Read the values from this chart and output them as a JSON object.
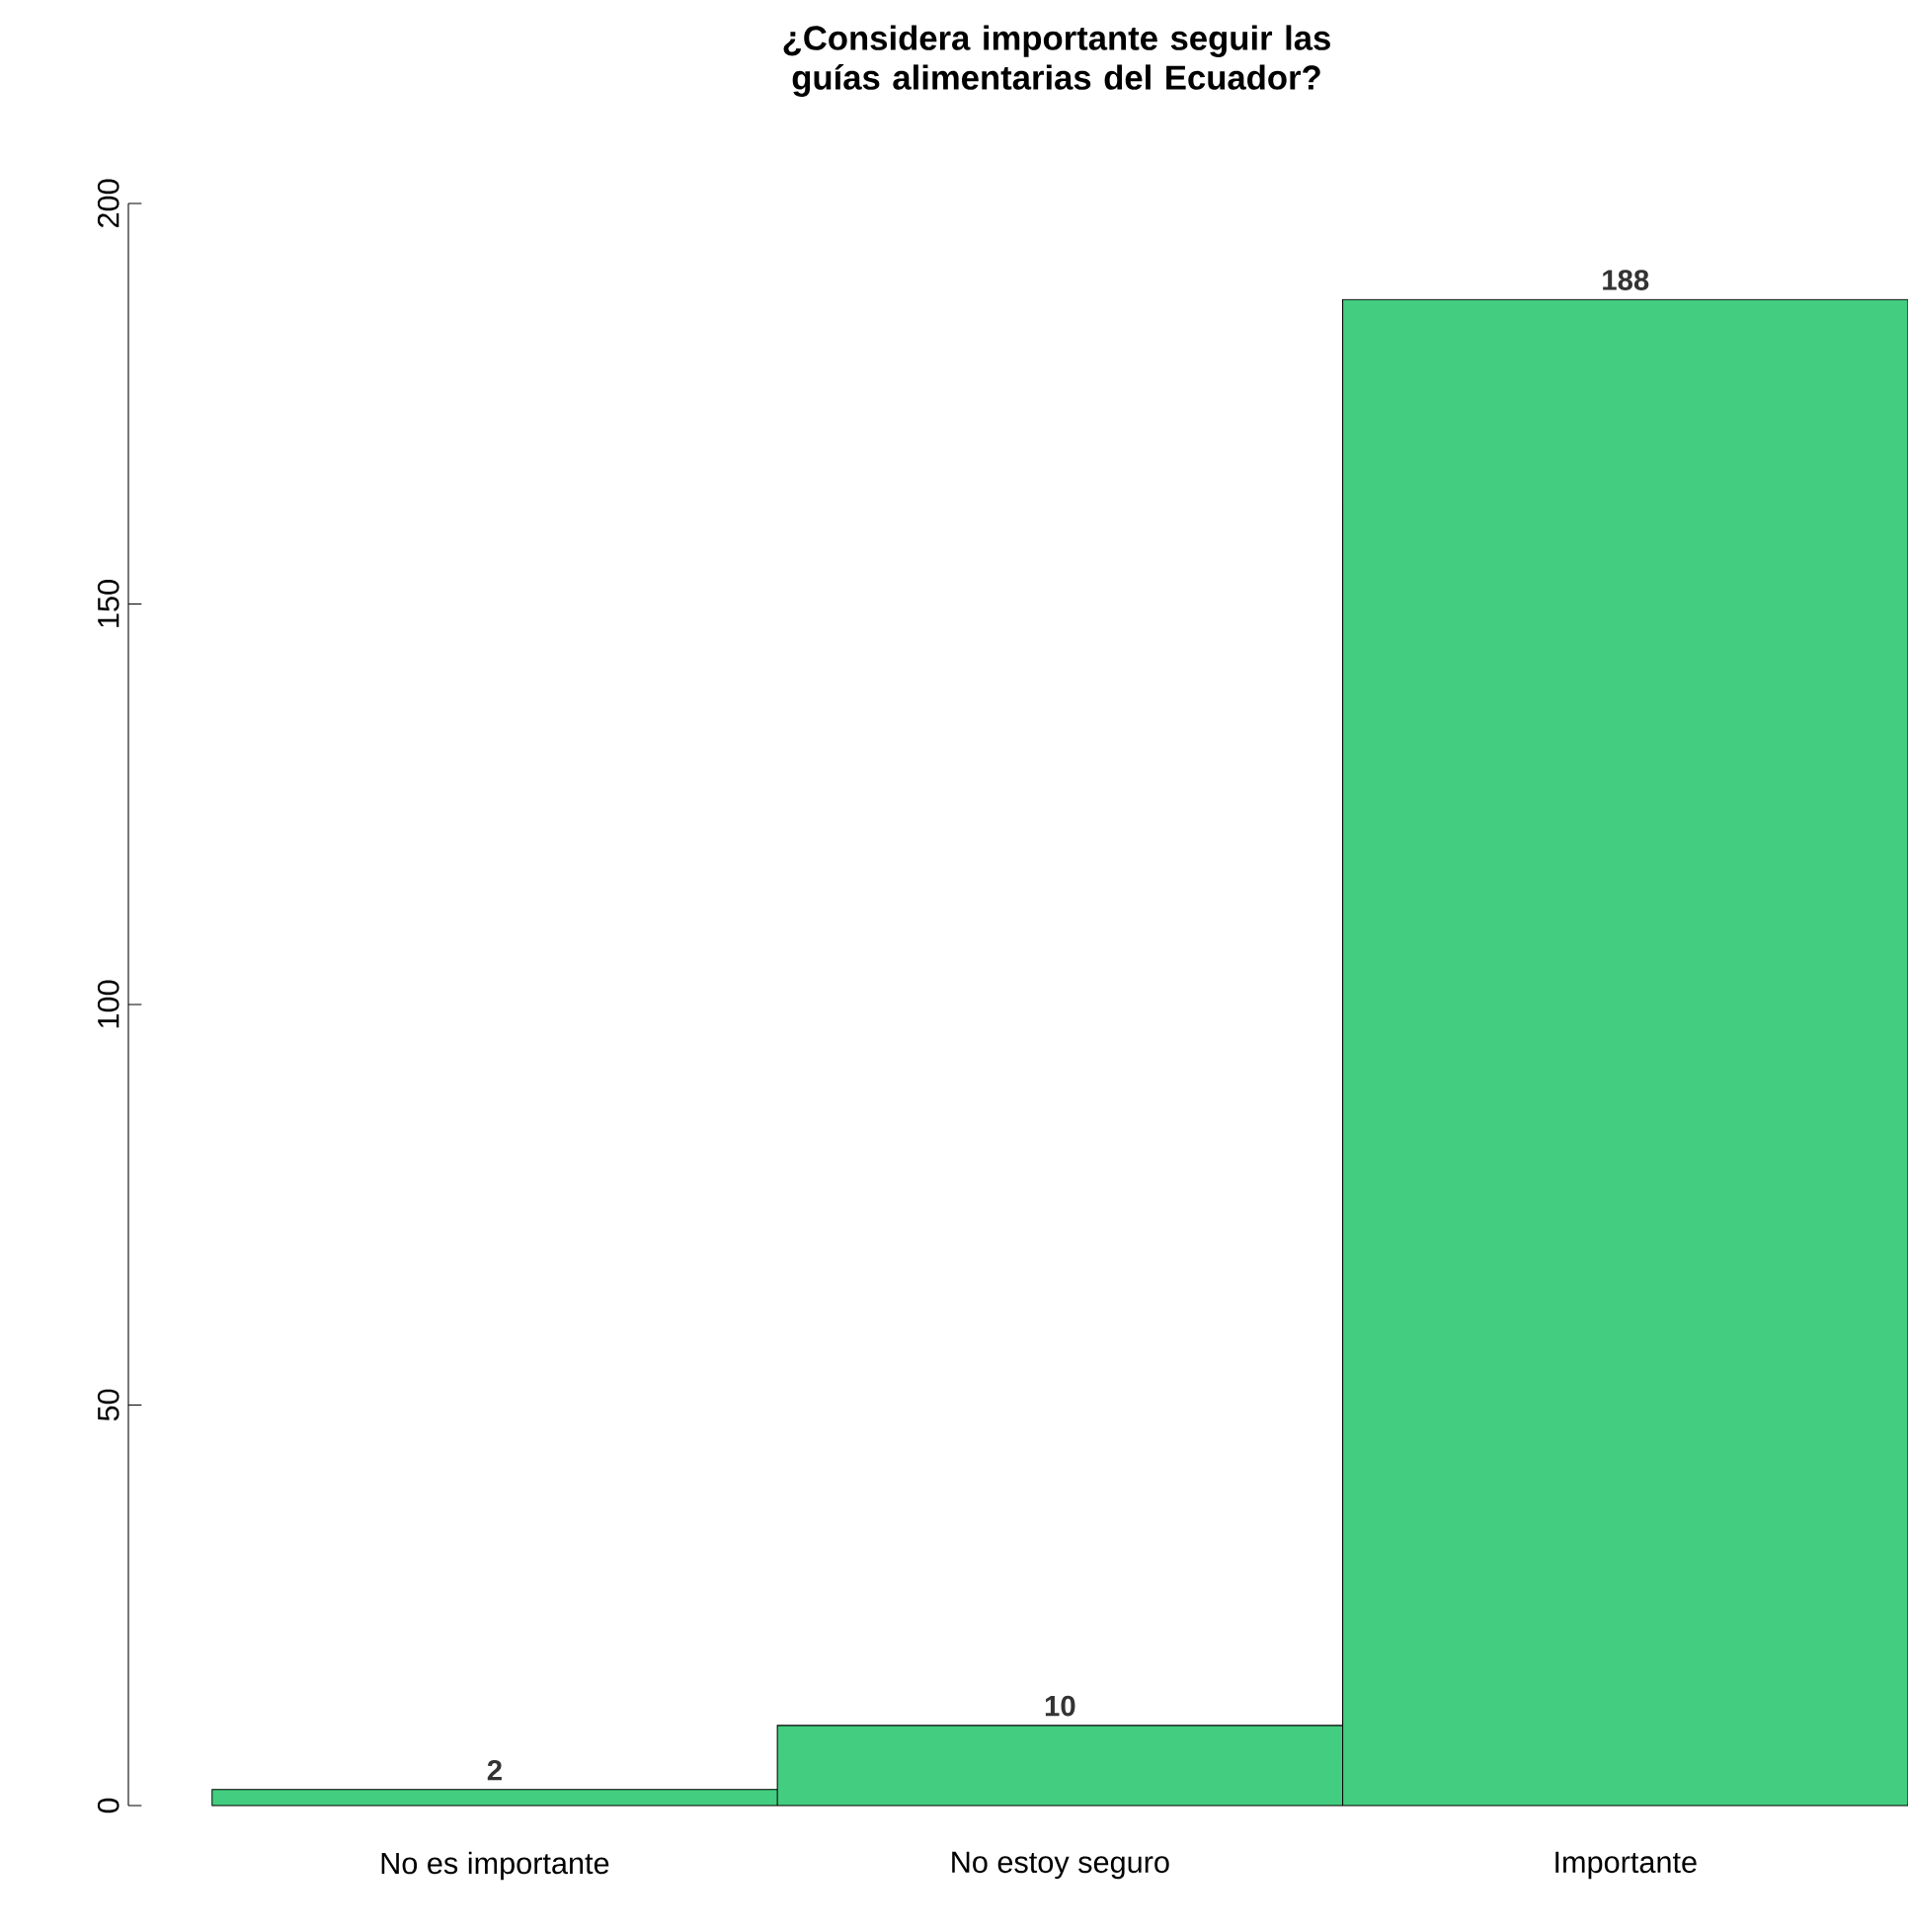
{
  "chart_data": {
    "type": "bar",
    "title": "¿Considera importante seguir las guías alimentarias del Ecuador?",
    "categories": [
      "No es importante",
      "No estoy seguro",
      "Importante"
    ],
    "values": [
      2,
      10,
      188
    ],
    "color": "#43cd80",
    "data_labels": true,
    "ylim": [
      0,
      200
    ],
    "yticks": [
      0,
      50,
      100,
      150,
      200
    ],
    "grid": false
  }
}
